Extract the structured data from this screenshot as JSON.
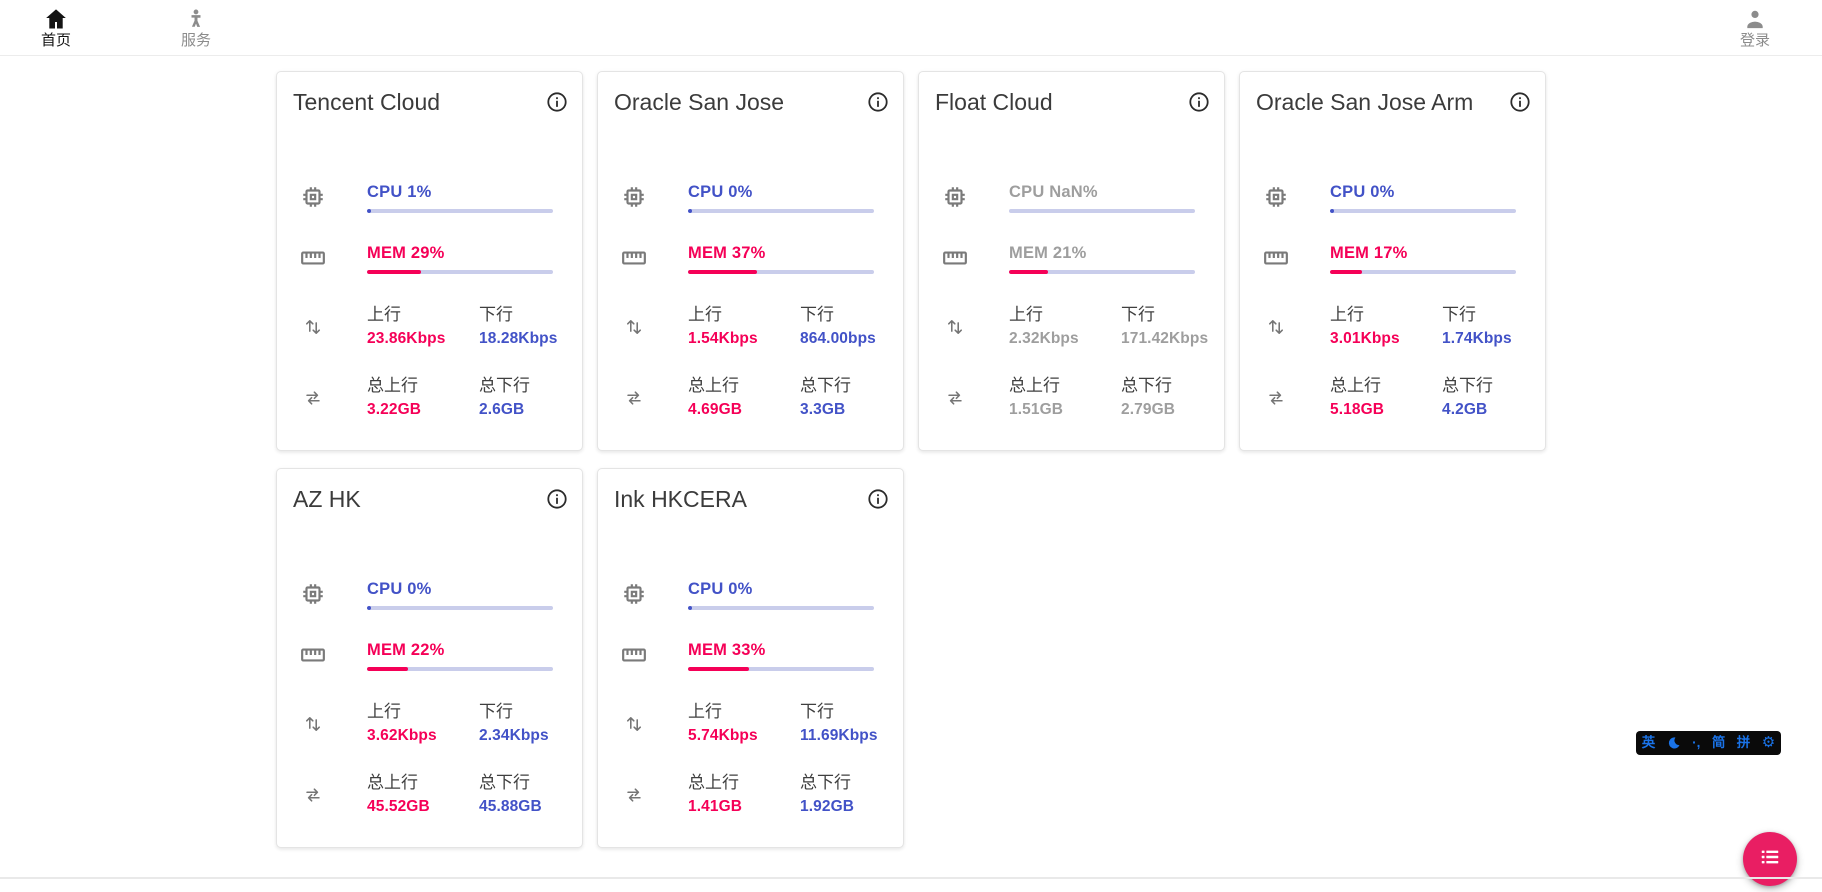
{
  "nav": {
    "home": {
      "label": "首页"
    },
    "services": {
      "label": "服务"
    },
    "login": {
      "label": "登录"
    }
  },
  "labels": {
    "upload": "上行",
    "download": "下行",
    "total_upload": "总上行",
    "total_download": "总下行"
  },
  "colors": {
    "accent_blue": "#4252c7",
    "accent_pink": "#f50057",
    "bar_track": "#c9cdeb",
    "offline_gray": "#9e9e9e",
    "fab_pink": "#e91e63",
    "ime_blue": "#1a73e8"
  },
  "servers": [
    {
      "name": "Tencent Cloud",
      "cpu_label": "CPU 1%",
      "cpu_pct": 1,
      "mem_label": "MEM 29%",
      "mem_pct": 29,
      "up": "23.86Kbps",
      "down": "18.28Kbps",
      "total_up": "3.22GB",
      "total_down": "2.6GB",
      "offline": false
    },
    {
      "name": "Oracle San Jose",
      "cpu_label": "CPU 0%",
      "cpu_pct": 0,
      "mem_label": "MEM 37%",
      "mem_pct": 37,
      "up": "1.54Kbps",
      "down": "864.00bps",
      "total_up": "4.69GB",
      "total_down": "3.3GB",
      "offline": false
    },
    {
      "name": "Float Cloud",
      "cpu_label": "CPU NaN%",
      "cpu_pct": null,
      "mem_label": "MEM 21%",
      "mem_pct": 21,
      "up": "2.32Kbps",
      "down": "171.42Kbps",
      "total_up": "1.51GB",
      "total_down": "2.79GB",
      "offline": true
    },
    {
      "name": "Oracle San Jose Arm",
      "cpu_label": "CPU 0%",
      "cpu_pct": 0,
      "mem_label": "MEM 17%",
      "mem_pct": 17,
      "up": "3.01Kbps",
      "down": "1.74Kbps",
      "total_up": "5.18GB",
      "total_down": "4.2GB",
      "offline": false
    },
    {
      "name": "AZ HK",
      "cpu_label": "CPU 0%",
      "cpu_pct": 0,
      "mem_label": "MEM 22%",
      "mem_pct": 22,
      "up": "3.62Kbps",
      "down": "2.34Kbps",
      "total_up": "45.52GB",
      "total_down": "45.88GB",
      "offline": false
    },
    {
      "name": "Ink HKCERA",
      "cpu_label": "CPU 0%",
      "cpu_pct": 0,
      "mem_label": "MEM 33%",
      "mem_pct": 33,
      "up": "5.74Kbps",
      "down": "11.69Kbps",
      "total_up": "1.41GB",
      "total_down": "1.92GB",
      "offline": false
    }
  ],
  "ime_bar": {
    "english_label": "英",
    "punctuation_label": "·,",
    "simplified_label": "简",
    "pinyin_label": "拼"
  }
}
